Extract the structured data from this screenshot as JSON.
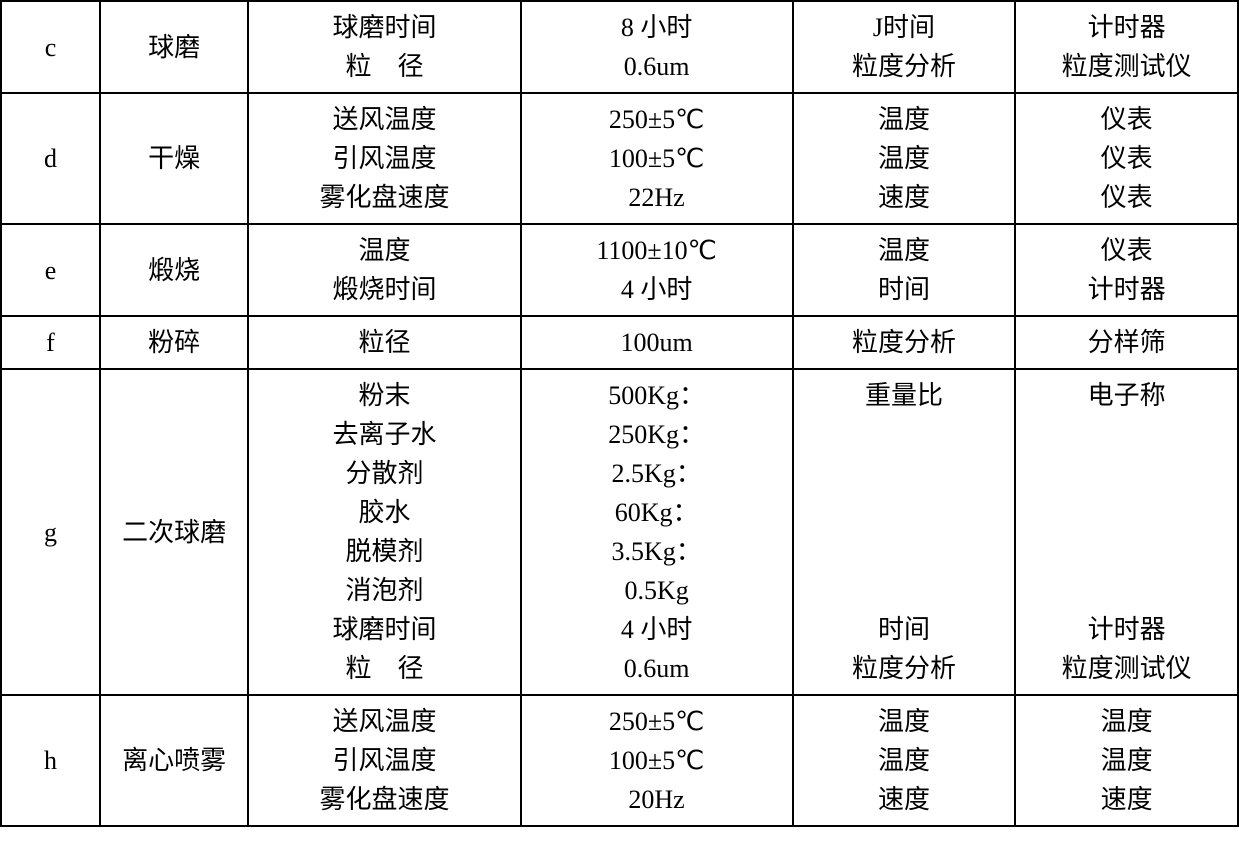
{
  "table": {
    "border_color": "#000000",
    "background_color": "#ffffff",
    "font_size": 26,
    "rows": [
      {
        "id": "c",
        "name": "球磨",
        "params": "球磨时间\n粒　径",
        "values": "8 小时\n0.6um",
        "measure": "J时间\n粒度分析",
        "instrument": "计时器\n粒度测试仪"
      },
      {
        "id": "d",
        "name": "干燥",
        "params": "送风温度\n引风温度\n雾化盘速度",
        "values": "250±5℃\n100±5℃\n22Hz",
        "measure": "温度\n温度\n速度",
        "instrument": "仪表\n仪表\n仪表"
      },
      {
        "id": "e",
        "name": "煅烧",
        "params": "温度\n煅烧时间",
        "values": "1100±10℃\n4 小时",
        "measure": "温度\n时间",
        "instrument": "仪表\n计时器"
      },
      {
        "id": "f",
        "name": "粉碎",
        "params": "粒径",
        "values": "100um",
        "measure": "粒度分析",
        "instrument": "分样筛"
      },
      {
        "id": "g",
        "name": "二次球磨",
        "params": "粉末\n去离子水\n分散剂\n胶水\n脱模剂\n消泡剂\n球磨时间\n粒　径",
        "values": "500Kg：\n250Kg：\n2.5Kg：\n60Kg：\n3.5Kg：\n0.5Kg\n4 小时\n0.6um",
        "measure": "重量比\n\n\n\n\n\n时间\n粒度分析",
        "instrument": "电子称\n\n\n\n\n\n计时器\n粒度测试仪"
      },
      {
        "id": "h",
        "name": "离心喷雾",
        "params": "送风温度\n引风温度\n雾化盘速度",
        "values": "250±5℃\n100±5℃\n20Hz",
        "measure": "温度\n温度\n速度",
        "instrument": "温度\n温度\n速度"
      }
    ]
  }
}
